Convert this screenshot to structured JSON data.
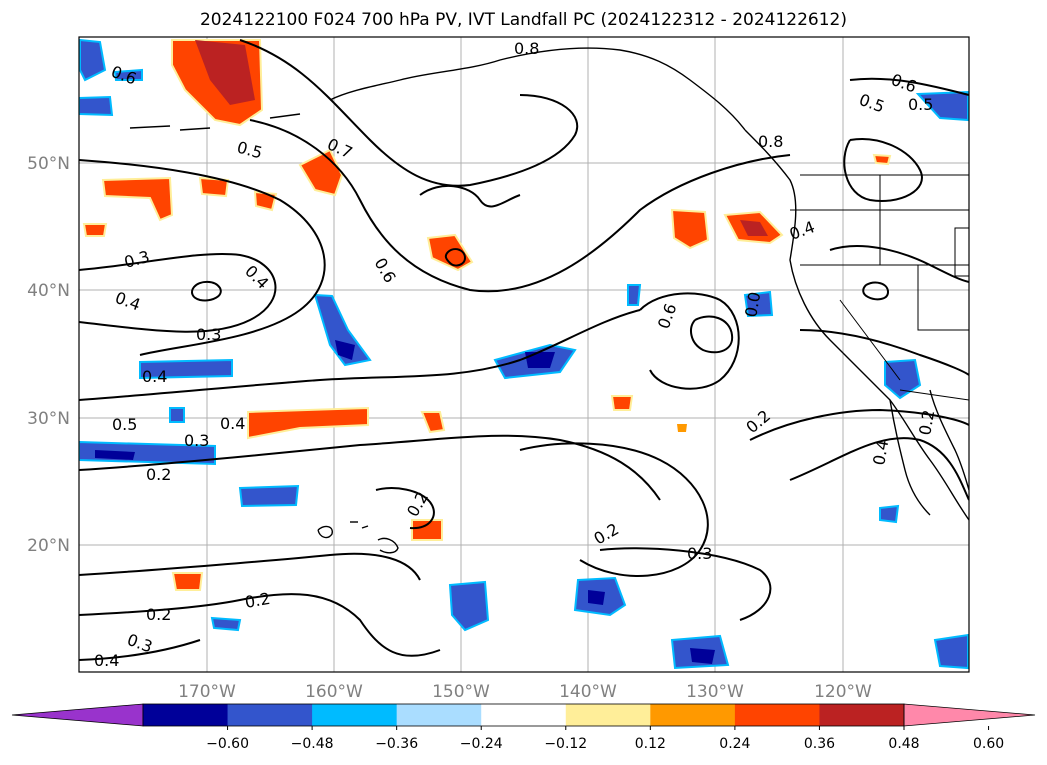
{
  "title": "2024122100 F024 700 hPa PV, IVT Landfall PC (2024122312 - 2024122612)",
  "lat_labels": [
    "50°N",
    "40°N",
    "30°N",
    "20°N"
  ],
  "lon_labels": [
    "170°W",
    "160°W",
    "150°W",
    "140°W",
    "130°W",
    "120°W"
  ],
  "contour_labels": [
    "0.8",
    "0.6",
    "0.5",
    "0.6",
    "0.5",
    "0.5",
    "0.7",
    "0.8",
    "0.4",
    "0.3",
    "0.4",
    "0.6",
    "0.4",
    "0.3",
    "0.6",
    "0.0",
    "0.4",
    "0.5",
    "0.3",
    "0.4",
    "0.2",
    "0.2",
    "0.2",
    "0.3",
    "0.2",
    "0.2",
    "0.3",
    "0.4",
    "0.2",
    "0.4",
    "0.2"
  ],
  "colorbar": {
    "ticks": [
      "−0.60",
      "−0.48",
      "−0.36",
      "−0.24",
      "−0.12",
      "0.12",
      "0.24",
      "0.36",
      "0.48",
      "0.60"
    ],
    "colors": [
      "#9933cc",
      "#000099",
      "#3355cc",
      "#00bbff",
      "#aaddff",
      "#ffffff",
      "#ffee99",
      "#ff9900",
      "#ff4400",
      "#bb2222",
      "#ff88aa"
    ]
  },
  "colors": {
    "land_line": "#000000",
    "contour": "#000000",
    "grid": "#b0b0b0",
    "dark_red": "#bb2222",
    "red": "#ff4400",
    "orange": "#ff9900",
    "yellow": "#ffee99",
    "light_blue": "#aaddff",
    "cyan": "#00bbff",
    "blue": "#3355cc",
    "dark_blue": "#000099"
  }
}
